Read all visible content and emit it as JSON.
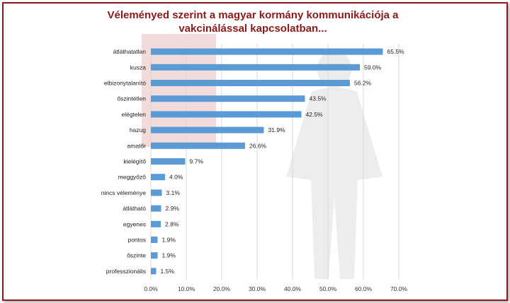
{
  "title_lines": [
    "Véleményed szerint a magyar kormány kommunikációja a",
    "vakcinálással kapcsolatban..."
  ],
  "colors": {
    "bar": "#5b9bd5",
    "title": "#8b1a1a",
    "grid": "#d9d9d9",
    "frame": "#8b1a1a"
  },
  "chart_data": {
    "type": "bar",
    "orientation": "horizontal",
    "title": "Véleményed szerint a magyar kormány kommunikációja a vakcinálással kapcsolatban...",
    "categories": [
      "átláthatatlan",
      "kusza",
      "elbizonytalanító",
      "őszintétlen",
      "elégtelen",
      "hazug",
      "amatőr",
      "kielégítő",
      "meggyőző",
      "nincs véleménye",
      "átlátható",
      "egyenes",
      "pontos",
      "őszinte",
      "professzionális"
    ],
    "values": [
      65.5,
      59.0,
      56.2,
      43.5,
      42.5,
      31.9,
      26.6,
      9.7,
      4.0,
      3.1,
      2.9,
      2.8,
      1.9,
      1.9,
      1.5
    ],
    "value_labels": [
      "65.5%",
      "59.0%",
      "56.2%",
      "43.5%",
      "42.5%",
      "31.9%",
      "26.6%",
      "9.7%",
      "4.0%",
      "3.1%",
      "2.9%",
      "2.8%",
      "1.9%",
      "1.9%",
      "1.5%"
    ],
    "xlim": [
      0,
      70
    ],
    "xticks": [
      "0.0%",
      "10.0%",
      "20.0%",
      "30.0%",
      "40.0%",
      "50.0%",
      "60.0%",
      "70.0%"
    ],
    "xlabel": "",
    "ylabel": "",
    "grid": true
  }
}
